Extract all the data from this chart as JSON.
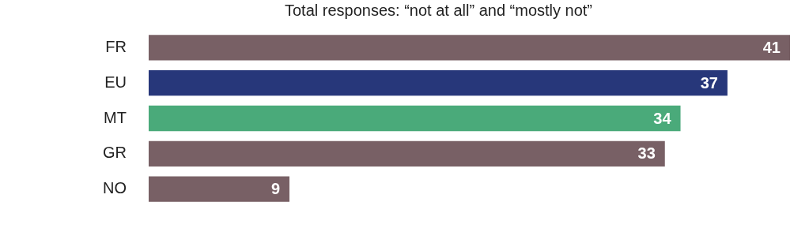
{
  "chart_data": {
    "type": "bar",
    "orientation": "horizontal",
    "title": "Total responses: “not at all” and “mostly not”",
    "categories": [
      "FR",
      "EU",
      "MT",
      "GR",
      "NO"
    ],
    "values": [
      41,
      37,
      34,
      33,
      9
    ],
    "colors": [
      "#786065",
      "#27377a",
      "#4aaa7a",
      "#786065",
      "#786065"
    ],
    "xlim": [
      0,
      41
    ],
    "legend": false,
    "tick_labels": "y",
    "data_labels": true
  }
}
